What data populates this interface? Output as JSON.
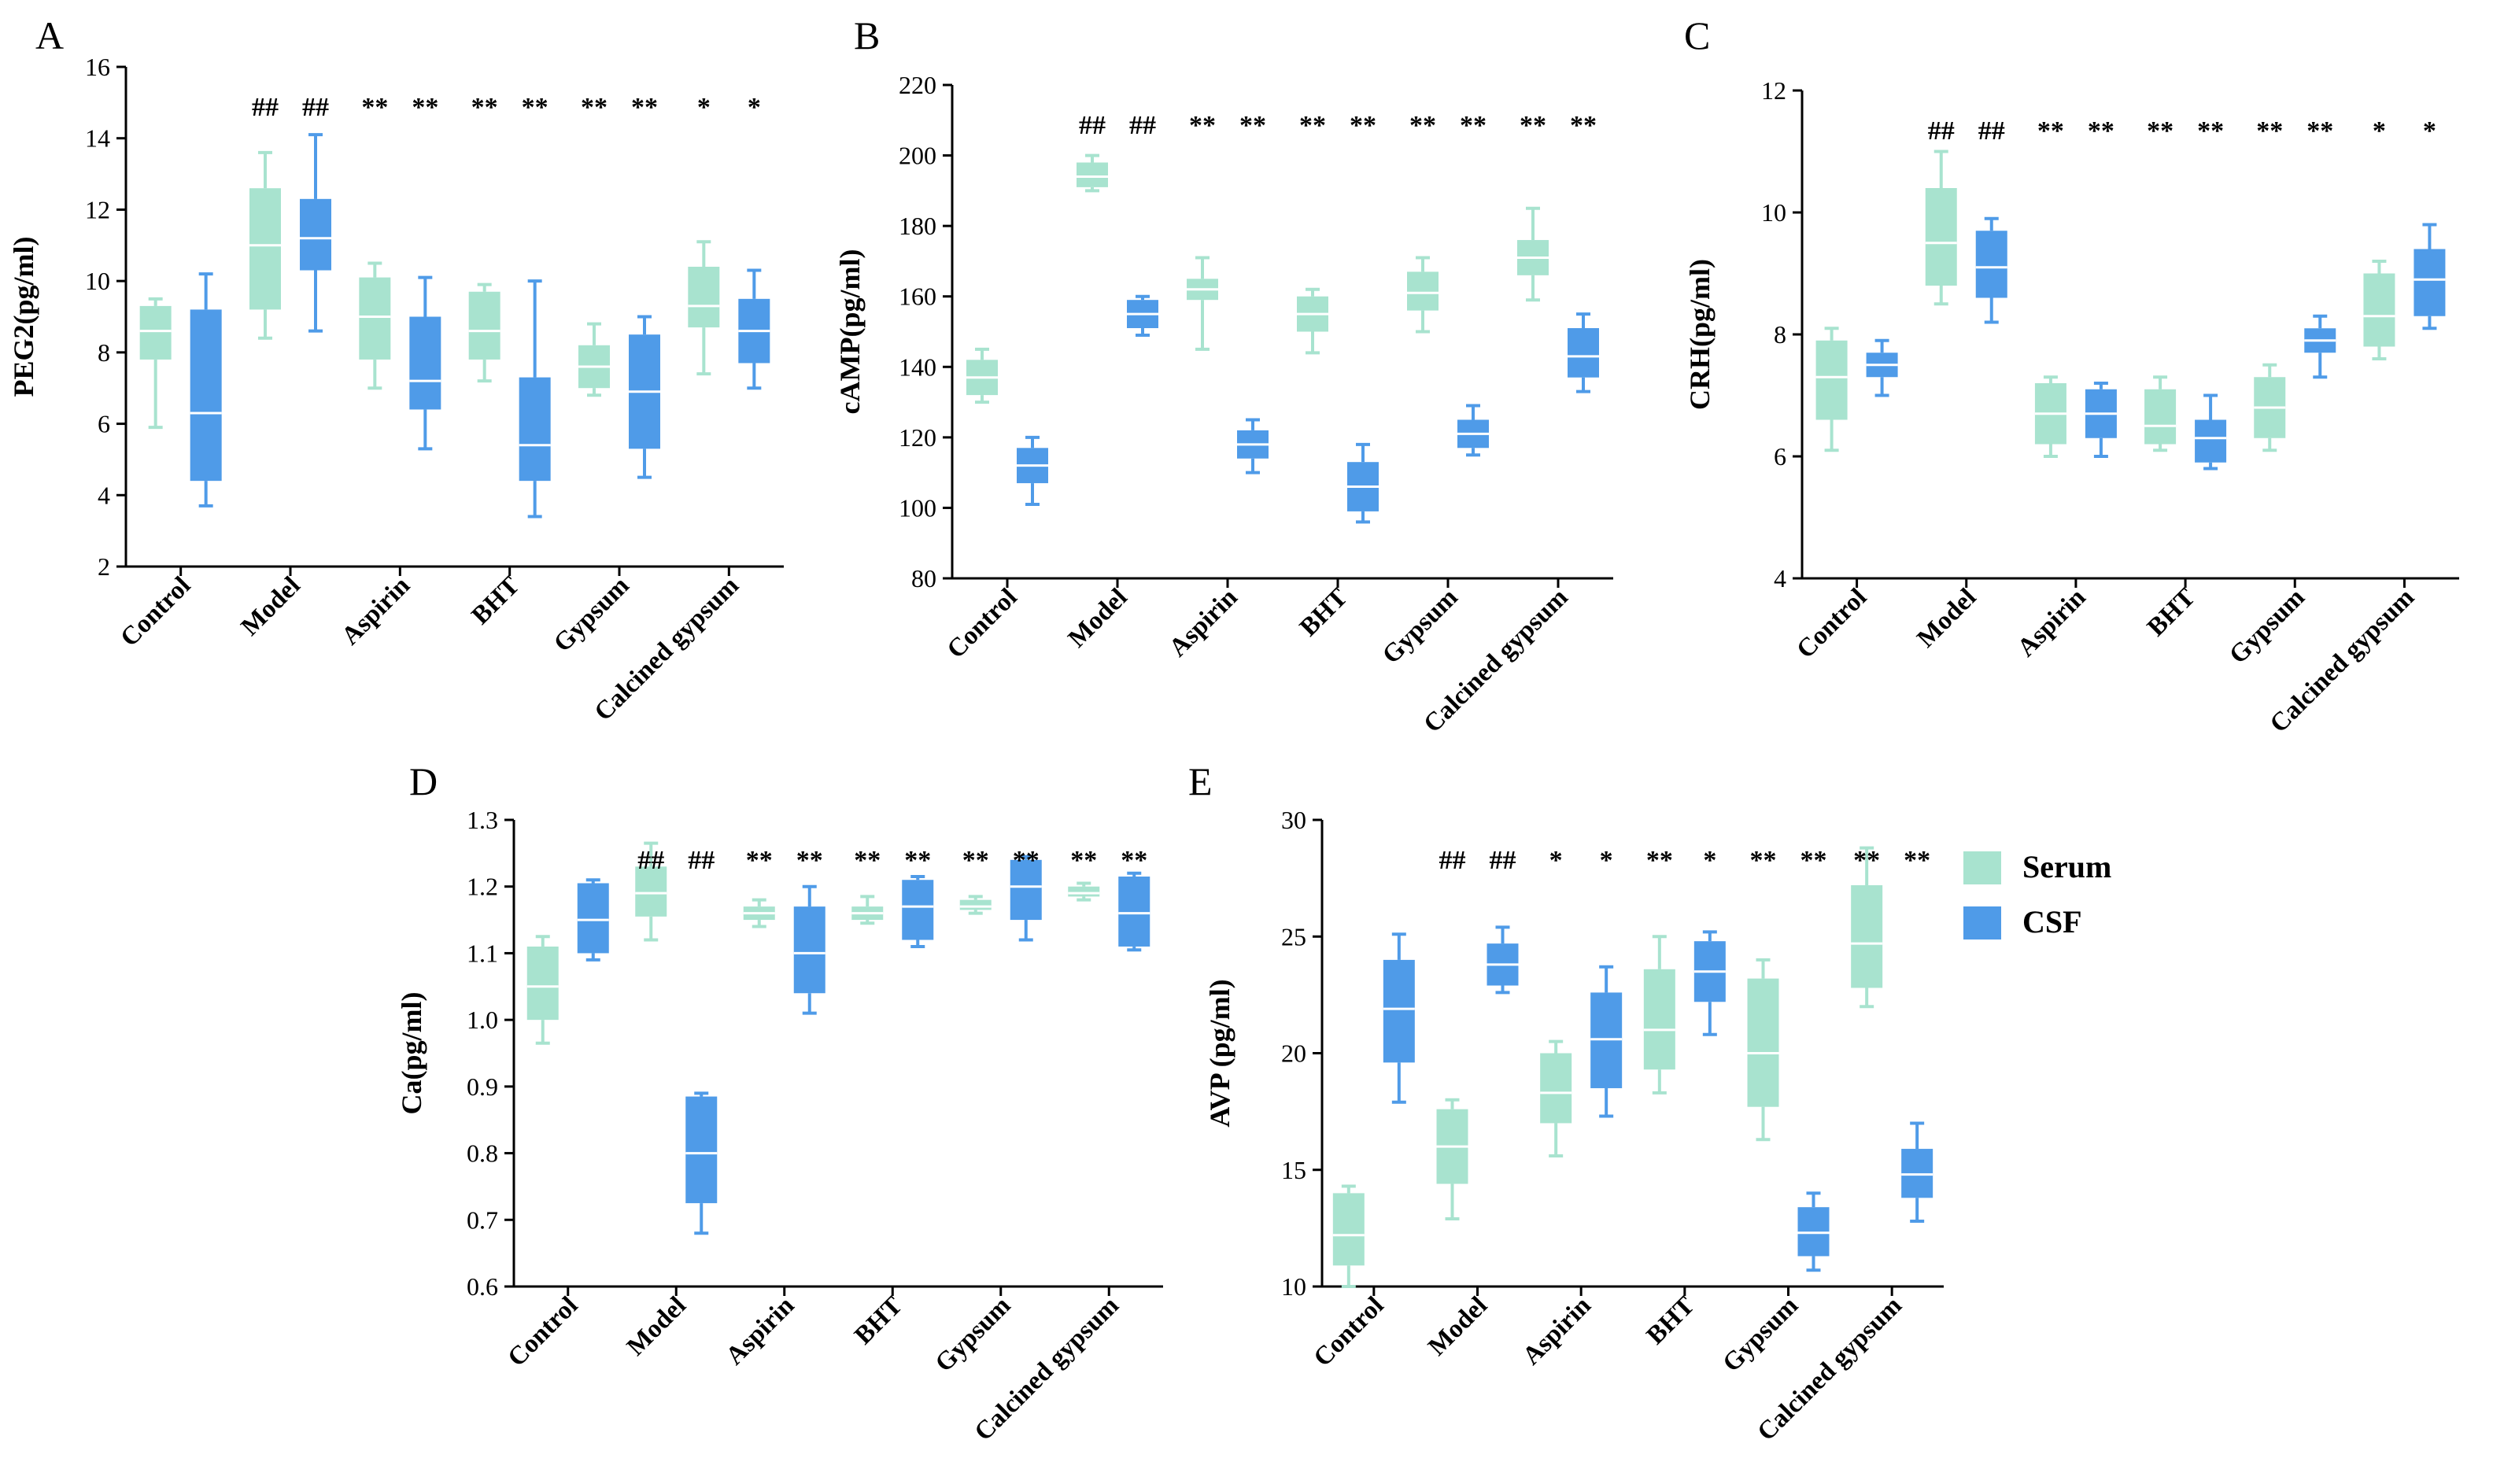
{
  "colors": {
    "serum": "#a8e3cf",
    "csf": "#4f9be8",
    "axis": "#000000"
  },
  "legend": {
    "items": [
      {
        "label": "Serum",
        "color": "#a8e3cf"
      },
      {
        "label": "CSF",
        "color": "#4f9be8"
      }
    ]
  },
  "chart_data": [
    {
      "panel": "A",
      "type": "box",
      "ylabel": "PEG2(pg/ml)",
      "ylim": [
        2,
        16
      ],
      "yticks": [
        2,
        4,
        6,
        8,
        10,
        12,
        14,
        16
      ],
      "categories": [
        "Control",
        "Model",
        "Aspirin",
        "BHT",
        "Gypsum",
        "Calcined gypsum"
      ],
      "series": [
        {
          "name": "Serum",
          "boxes": [
            {
              "min": 5.9,
              "q1": 7.8,
              "median": 8.6,
              "q3": 9.3,
              "max": 9.5
            },
            {
              "min": 8.4,
              "q1": 9.2,
              "median": 11.0,
              "q3": 12.6,
              "max": 13.6
            },
            {
              "min": 7.0,
              "q1": 7.8,
              "median": 9.0,
              "q3": 10.1,
              "max": 10.5
            },
            {
              "min": 7.2,
              "q1": 7.8,
              "median": 8.6,
              "q3": 9.7,
              "max": 9.9
            },
            {
              "min": 6.8,
              "q1": 7.0,
              "median": 7.6,
              "q3": 8.2,
              "max": 8.8
            },
            {
              "min": 7.4,
              "q1": 8.7,
              "median": 9.3,
              "q3": 10.4,
              "max": 11.1
            }
          ],
          "annotations": [
            "",
            "##",
            "**",
            "**",
            "**",
            "*"
          ]
        },
        {
          "name": "CSF",
          "boxes": [
            {
              "min": 3.7,
              "q1": 4.4,
              "median": 6.3,
              "q3": 9.2,
              "max": 10.2
            },
            {
              "min": 8.6,
              "q1": 10.3,
              "median": 11.2,
              "q3": 12.3,
              "max": 14.1
            },
            {
              "min": 5.3,
              "q1": 6.4,
              "median": 7.2,
              "q3": 9.0,
              "max": 10.1
            },
            {
              "min": 3.4,
              "q1": 4.4,
              "median": 5.4,
              "q3": 7.3,
              "max": 10.0
            },
            {
              "min": 4.5,
              "q1": 5.3,
              "median": 6.9,
              "q3": 8.5,
              "max": 9.0
            },
            {
              "min": 7.0,
              "q1": 7.7,
              "median": 8.6,
              "q3": 9.5,
              "max": 10.3
            }
          ],
          "annotations": [
            "",
            "##",
            "**",
            "**",
            "**",
            "*"
          ]
        }
      ]
    },
    {
      "panel": "B",
      "type": "box",
      "ylabel": "cAMP(pg/ml)",
      "ylim": [
        80,
        220
      ],
      "yticks": [
        80,
        100,
        120,
        140,
        160,
        180,
        200,
        220
      ],
      "categories": [
        "Control",
        "Model",
        "Aspirin",
        "BHT",
        "Gypsum",
        "Calcined gypsum"
      ],
      "series": [
        {
          "name": "Serum",
          "boxes": [
            {
              "min": 130,
              "q1": 132,
              "median": 137,
              "q3": 142,
              "max": 145
            },
            {
              "min": 190,
              "q1": 191,
              "median": 194,
              "q3": 198,
              "max": 200
            },
            {
              "min": 145,
              "q1": 159,
              "median": 162,
              "q3": 165,
              "max": 171
            },
            {
              "min": 144,
              "q1": 150,
              "median": 155,
              "q3": 160,
              "max": 162
            },
            {
              "min": 150,
              "q1": 156,
              "median": 161,
              "q3": 167,
              "max": 171
            },
            {
              "min": 159,
              "q1": 166,
              "median": 171,
              "q3": 176,
              "max": 185
            }
          ],
          "annotations": [
            "",
            "##",
            "**",
            "**",
            "**",
            "**"
          ]
        },
        {
          "name": "CSF",
          "boxes": [
            {
              "min": 101,
              "q1": 107,
              "median": 112,
              "q3": 117,
              "max": 120
            },
            {
              "min": 149,
              "q1": 151,
              "median": 155,
              "q3": 159,
              "max": 160
            },
            {
              "min": 110,
              "q1": 114,
              "median": 118,
              "q3": 122,
              "max": 125
            },
            {
              "min": 96,
              "q1": 99,
              "median": 106,
              "q3": 113,
              "max": 118
            },
            {
              "min": 115,
              "q1": 117,
              "median": 121,
              "q3": 125,
              "max": 129
            },
            {
              "min": 133,
              "q1": 137,
              "median": 143,
              "q3": 151,
              "max": 155
            }
          ],
          "annotations": [
            "",
            "##",
            "**",
            "**",
            "**",
            "**"
          ]
        }
      ]
    },
    {
      "panel": "C",
      "type": "box",
      "ylabel": "CRH(pg/ml)",
      "ylim": [
        4,
        12
      ],
      "yticks": [
        4,
        6,
        8,
        10,
        12
      ],
      "categories": [
        "Control",
        "Model",
        "Aspirin",
        "BHT",
        "Gypsum",
        "Calcined gypsum"
      ],
      "series": [
        {
          "name": "Serum",
          "boxes": [
            {
              "min": 6.1,
              "q1": 6.6,
              "median": 7.3,
              "q3": 7.9,
              "max": 8.1
            },
            {
              "min": 8.5,
              "q1": 8.8,
              "median": 9.5,
              "q3": 10.4,
              "max": 11.0
            },
            {
              "min": 6.0,
              "q1": 6.2,
              "median": 6.7,
              "q3": 7.2,
              "max": 7.3
            },
            {
              "min": 6.1,
              "q1": 6.2,
              "median": 6.5,
              "q3": 7.1,
              "max": 7.3
            },
            {
              "min": 6.1,
              "q1": 6.3,
              "median": 6.8,
              "q3": 7.3,
              "max": 7.5
            },
            {
              "min": 7.6,
              "q1": 7.8,
              "median": 8.3,
              "q3": 9.0,
              "max": 9.2
            }
          ],
          "annotations": [
            "",
            "##",
            "**",
            "**",
            "**",
            "*"
          ]
        },
        {
          "name": "CSF",
          "boxes": [
            {
              "min": 7.0,
              "q1": 7.3,
              "median": 7.5,
              "q3": 7.7,
              "max": 7.9
            },
            {
              "min": 8.2,
              "q1": 8.6,
              "median": 9.1,
              "q3": 9.7,
              "max": 9.9
            },
            {
              "min": 6.0,
              "q1": 6.3,
              "median": 6.7,
              "q3": 7.1,
              "max": 7.2
            },
            {
              "min": 5.8,
              "q1": 5.9,
              "median": 6.3,
              "q3": 6.6,
              "max": 7.0
            },
            {
              "min": 7.3,
              "q1": 7.7,
              "median": 7.9,
              "q3": 8.1,
              "max": 8.3
            },
            {
              "min": 8.1,
              "q1": 8.3,
              "median": 8.9,
              "q3": 9.4,
              "max": 9.8
            }
          ],
          "annotations": [
            "",
            "##",
            "**",
            "**",
            "**",
            "*"
          ]
        }
      ]
    },
    {
      "panel": "D",
      "type": "box",
      "ylabel": "Ca(pg/ml)",
      "ylim": [
        0.6,
        1.3
      ],
      "yticks": [
        0.6,
        0.7,
        0.8,
        0.9,
        1.0,
        1.1,
        1.2,
        1.3
      ],
      "yticklabels": [
        "0.6",
        "0.7",
        "0.8",
        "0.9",
        "1.0",
        "1.1",
        "1.2",
        "1.3"
      ],
      "categories": [
        "Control",
        "Model",
        "Aspirin",
        "BHT",
        "Gypsum",
        "Calcined gypsum"
      ],
      "series": [
        {
          "name": "Serum",
          "boxes": [
            {
              "min": 0.965,
              "q1": 1.0,
              "median": 1.05,
              "q3": 1.11,
              "max": 1.125
            },
            {
              "min": 1.12,
              "q1": 1.155,
              "median": 1.19,
              "q3": 1.23,
              "max": 1.265
            },
            {
              "min": 1.14,
              "q1": 1.15,
              "median": 1.16,
              "q3": 1.17,
              "max": 1.18
            },
            {
              "min": 1.145,
              "q1": 1.15,
              "median": 1.16,
              "q3": 1.17,
              "max": 1.185
            },
            {
              "min": 1.16,
              "q1": 1.165,
              "median": 1.17,
              "q3": 1.18,
              "max": 1.185
            },
            {
              "min": 1.18,
              "q1": 1.185,
              "median": 1.19,
              "q3": 1.2,
              "max": 1.205
            }
          ],
          "annotations": [
            "",
            "##",
            "**",
            "**",
            "**",
            "**"
          ]
        },
        {
          "name": "CSF",
          "boxes": [
            {
              "min": 1.09,
              "q1": 1.1,
              "median": 1.15,
              "q3": 1.205,
              "max": 1.21
            },
            {
              "min": 0.68,
              "q1": 0.725,
              "median": 0.8,
              "q3": 0.885,
              "max": 0.89
            },
            {
              "min": 1.01,
              "q1": 1.04,
              "median": 1.1,
              "q3": 1.17,
              "max": 1.2
            },
            {
              "min": 1.11,
              "q1": 1.12,
              "median": 1.17,
              "q3": 1.21,
              "max": 1.215
            },
            {
              "min": 1.12,
              "q1": 1.15,
              "median": 1.2,
              "q3": 1.24,
              "max": 1.245
            },
            {
              "min": 1.105,
              "q1": 1.11,
              "median": 1.16,
              "q3": 1.215,
              "max": 1.22
            }
          ],
          "annotations": [
            "",
            "##",
            "**",
            "**",
            "**",
            "**"
          ]
        }
      ]
    },
    {
      "panel": "E",
      "type": "box",
      "ylabel": "AVP (pg/ml)",
      "ylim": [
        10,
        30
      ],
      "yticks": [
        10,
        15,
        20,
        25,
        30
      ],
      "categories": [
        "Control",
        "Model",
        "Aspirin",
        "BHT",
        "Gypsum",
        "Calcined gypsum"
      ],
      "series": [
        {
          "name": "Serum",
          "boxes": [
            {
              "min": 10.0,
              "q1": 10.9,
              "median": 12.2,
              "q3": 14.0,
              "max": 14.3
            },
            {
              "min": 12.9,
              "q1": 14.4,
              "median": 16.0,
              "q3": 17.6,
              "max": 18.0
            },
            {
              "min": 15.6,
              "q1": 17.0,
              "median": 18.3,
              "q3": 20.0,
              "max": 20.5
            },
            {
              "min": 18.3,
              "q1": 19.3,
              "median": 21.0,
              "q3": 23.6,
              "max": 25.0
            },
            {
              "min": 16.3,
              "q1": 17.7,
              "median": 20.0,
              "q3": 23.2,
              "max": 24.0
            },
            {
              "min": 22.0,
              "q1": 22.8,
              "median": 24.7,
              "q3": 27.2,
              "max": 28.8
            }
          ],
          "annotations": [
            "",
            "##",
            "*",
            "**",
            "**",
            "**"
          ]
        },
        {
          "name": "CSF",
          "boxes": [
            {
              "min": 17.9,
              "q1": 19.6,
              "median": 21.9,
              "q3": 24.0,
              "max": 25.1
            },
            {
              "min": 22.6,
              "q1": 22.9,
              "median": 23.8,
              "q3": 24.7,
              "max": 25.4
            },
            {
              "min": 17.3,
              "q1": 18.5,
              "median": 20.6,
              "q3": 22.6,
              "max": 23.7
            },
            {
              "min": 20.8,
              "q1": 22.2,
              "median": 23.5,
              "q3": 24.8,
              "max": 25.2
            },
            {
              "min": 10.7,
              "q1": 11.3,
              "median": 12.3,
              "q3": 13.4,
              "max": 14.0
            },
            {
              "min": 12.8,
              "q1": 13.8,
              "median": 14.8,
              "q3": 15.9,
              "max": 17.0
            }
          ],
          "annotations": [
            "",
            "##",
            "*",
            "*",
            "**",
            "**"
          ]
        }
      ]
    }
  ]
}
